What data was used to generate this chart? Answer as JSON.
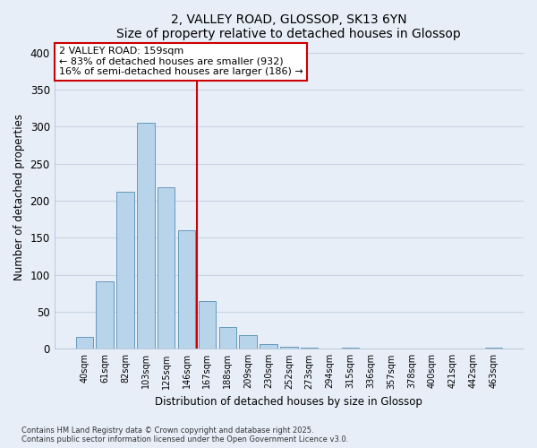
{
  "title": "2, VALLEY ROAD, GLOSSOP, SK13 6YN",
  "subtitle": "Size of property relative to detached houses in Glossop",
  "xlabel": "Distribution of detached houses by size in Glossop",
  "ylabel": "Number of detached properties",
  "bin_labels": [
    "40sqm",
    "61sqm",
    "82sqm",
    "103sqm",
    "125sqm",
    "146sqm",
    "167sqm",
    "188sqm",
    "209sqm",
    "230sqm",
    "252sqm",
    "273sqm",
    "294sqm",
    "315sqm",
    "336sqm",
    "357sqm",
    "378sqm",
    "400sqm",
    "421sqm",
    "442sqm",
    "463sqm"
  ],
  "bar_values": [
    16,
    91,
    212,
    305,
    218,
    160,
    64,
    30,
    19,
    6,
    3,
    2,
    0,
    1,
    0,
    0,
    0,
    0,
    0,
    0,
    2
  ],
  "bar_color": "#b8d4ea",
  "bar_edge_color": "#6699bb",
  "vline_x": 6.0,
  "vline_color": "#cc0000",
  "ylim": [
    0,
    410
  ],
  "yticks": [
    0,
    50,
    100,
    150,
    200,
    250,
    300,
    350,
    400
  ],
  "annotation_title": "2 VALLEY ROAD: 159sqm",
  "annotation_line1": "← 83% of detached houses are smaller (932)",
  "annotation_line2": "16% of semi-detached houses are larger (186) →",
  "footer_line1": "Contains HM Land Registry data © Crown copyright and database right 2025.",
  "footer_line2": "Contains public sector information licensed under the Open Government Licence v3.0.",
  "background_color": "#e8eef8",
  "plot_bg_color": "#e8eef8",
  "grid_color": "#c8d4e4"
}
